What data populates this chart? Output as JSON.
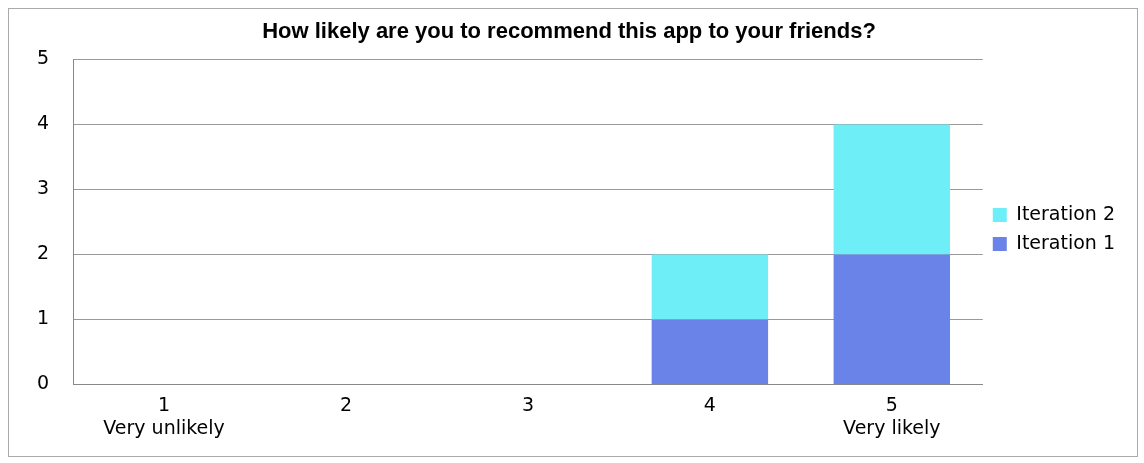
{
  "chart_data": {
    "type": "bar",
    "title": "How likely are you to recommend this app to your friends?",
    "categories": [
      "1\nVery unlikely",
      "2",
      "3",
      "4",
      "5\nVery likely"
    ],
    "series": [
      {
        "name": "Iteration 1",
        "color": "#6a83e8",
        "values": [
          0,
          0,
          0,
          1,
          2
        ]
      },
      {
        "name": "Iteration 2",
        "color": "#6eeef7",
        "values": [
          0,
          0,
          0,
          1,
          2
        ]
      }
    ],
    "stacked": true,
    "ylim": [
      0,
      5
    ],
    "yticks": [
      0,
      1,
      2,
      3,
      4,
      5
    ],
    "grid": "y",
    "legend": "right"
  }
}
